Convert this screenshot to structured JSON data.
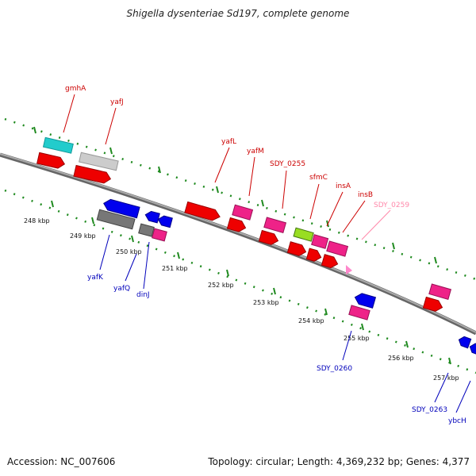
{
  "title": "Shigella dysenteriae Sd197, complete genome",
  "footer": {
    "accession": "Accession: NC_007606",
    "summary": "Topology: circular; Length: 4,369,232 bp; Genes: 4,377"
  },
  "colors": {
    "backbone": "#888888",
    "tick": "#1f8a1f",
    "forward_label": "#cc0000",
    "reverse_label": "#0000bb",
    "pseudo_label": "#ff88aa"
  },
  "kbp_labels": [
    "248 kbp",
    "249 kbp",
    "250 kbp",
    "251 kbp",
    "252 kbp",
    "253 kbp",
    "254 kbp",
    "255 kbp",
    "256 kbp",
    "257 kbp"
  ],
  "forward_genes": [
    "gmhA",
    "yafJ",
    "yafL",
    "yafM",
    "SDY_0255",
    "sfmC",
    "insA",
    "insB",
    "SDY_0259"
  ],
  "reverse_genes": [
    "yafK",
    "yafQ",
    "dinJ",
    "SDY_0260",
    "SDY_0263",
    "ybcH"
  ]
}
